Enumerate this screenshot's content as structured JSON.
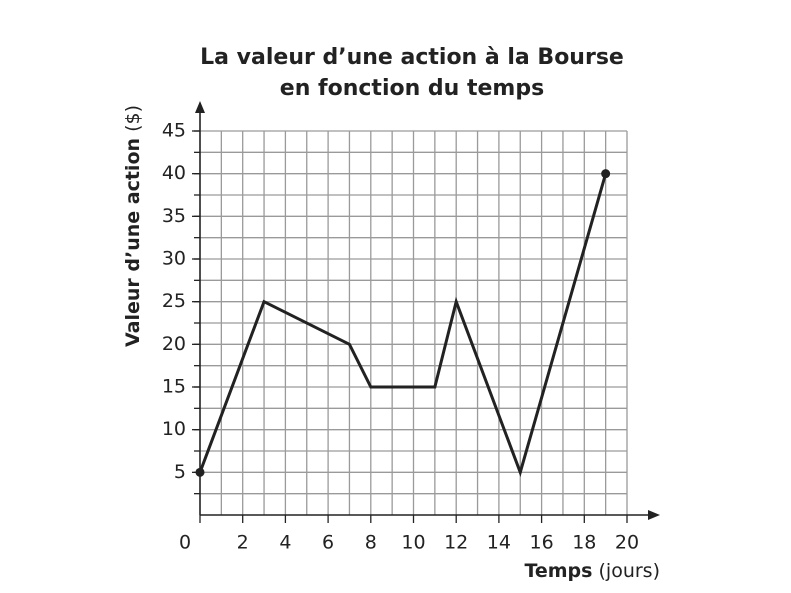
{
  "chart_data": {
    "type": "line",
    "title": [
      "La valeur d’une action à la Bourse",
      "en fonction du temps"
    ],
    "x_label": "Temps",
    "x_unit": "(jours)",
    "y_label": "Valeur d’une action",
    "y_unit": "($)",
    "x": [
      0,
      3,
      7,
      8,
      11,
      12,
      15,
      19
    ],
    "values": [
      5,
      25,
      20,
      15,
      15,
      25,
      5,
      40
    ],
    "color": "#222222",
    "end_markers": true,
    "xlim": [
      0,
      20
    ],
    "ylim": [
      0,
      45
    ],
    "xticks": [
      0,
      2,
      4,
      6,
      8,
      10,
      12,
      14,
      16,
      18,
      20
    ],
    "yticks": [
      5,
      10,
      15,
      20,
      25,
      30,
      35,
      40,
      45
    ],
    "xgrid": [
      1,
      2,
      3,
      4,
      5,
      6,
      7,
      8,
      9,
      10,
      11,
      12,
      13,
      14,
      15,
      16,
      17,
      18,
      19,
      20
    ],
    "ygrid": [
      2.5,
      5,
      7.5,
      10,
      12.5,
      15,
      17.5,
      20,
      22.5,
      25,
      27.5,
      30,
      32.5,
      35,
      37.5,
      40,
      42.5,
      45
    ],
    "grid": true,
    "grid_color": "#9a9a9a"
  }
}
